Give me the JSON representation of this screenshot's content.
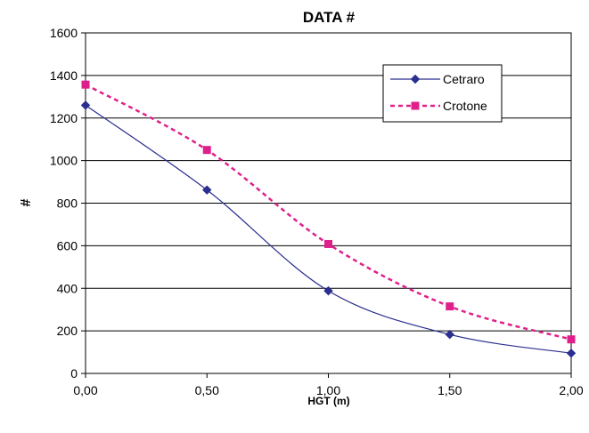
{
  "chart_data": {
    "type": "line",
    "title": "DATA #",
    "xlabel": "HGT (m)",
    "ylabel": "#",
    "xlim": [
      0,
      2
    ],
    "ylim": [
      0,
      1600
    ],
    "x_ticks": [
      "0,00",
      "0,50",
      "1,00",
      "1,50",
      "2,00"
    ],
    "y_ticks": [
      "0",
      "200",
      "400",
      "600",
      "800",
      "1000",
      "1200",
      "1400",
      "1600"
    ],
    "grid": "horizontal",
    "legend_position": "top-right",
    "series": [
      {
        "name": "Cetraro",
        "color": "#2b2f8f",
        "marker": "diamond",
        "line_style": "solid",
        "x": [
          0,
          0.5,
          1.0,
          1.5,
          2.0
        ],
        "y": [
          1260,
          862,
          388,
          183,
          95
        ]
      },
      {
        "name": "Crotone",
        "color": "#e0208a",
        "marker": "square",
        "line_style": "dashed",
        "x": [
          0,
          0.5,
          1.0,
          1.5,
          2.0
        ],
        "y": [
          1357,
          1050,
          608,
          315,
          160
        ]
      }
    ]
  }
}
